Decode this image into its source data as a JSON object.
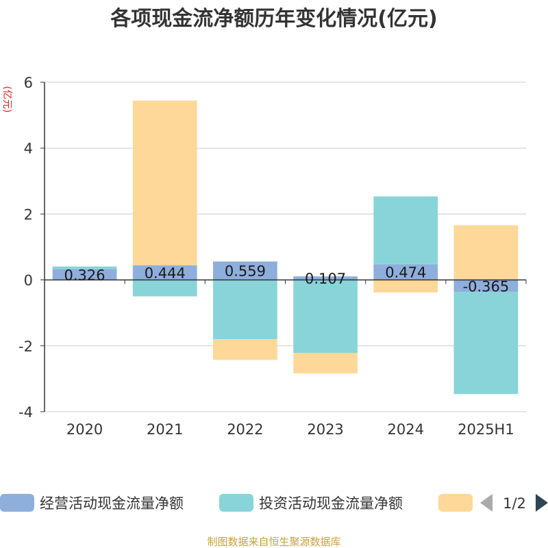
{
  "chart_data": {
    "type": "bar",
    "title": "各项现金流净额历年变化情况(亿元)",
    "ylabel": "(亿元)",
    "ylim": [
      -4,
      6
    ],
    "yticks": [
      -4,
      -2,
      0,
      2,
      4,
      6
    ],
    "grid": true,
    "categories": [
      "2020",
      "2021",
      "2022",
      "2023",
      "2024",
      "2025H1"
    ],
    "series": [
      {
        "name": "经营活动现金流量净额",
        "color": "#8eaedc",
        "values": [
          0.326,
          0.444,
          0.559,
          0.107,
          0.474,
          -0.365
        ]
      },
      {
        "name": "投资活动现金流量净额",
        "color": "#88d4d8",
        "values": [
          0.08,
          -0.5,
          -1.8,
          -2.22,
          2.06,
          -3.1
        ]
      },
      {
        "name": "",
        "color": "#fed898",
        "values": [
          0,
          5.0,
          -0.63,
          -0.62,
          -0.38,
          1.66
        ]
      }
    ],
    "data_labels": [
      "0.326",
      "0.444",
      "0.559",
      "0.107",
      "0.474",
      "-0.365"
    ],
    "legend": {
      "placement": "bottom",
      "page": "1/2"
    }
  },
  "footer": "制图数据来自恒生聚源数据库"
}
